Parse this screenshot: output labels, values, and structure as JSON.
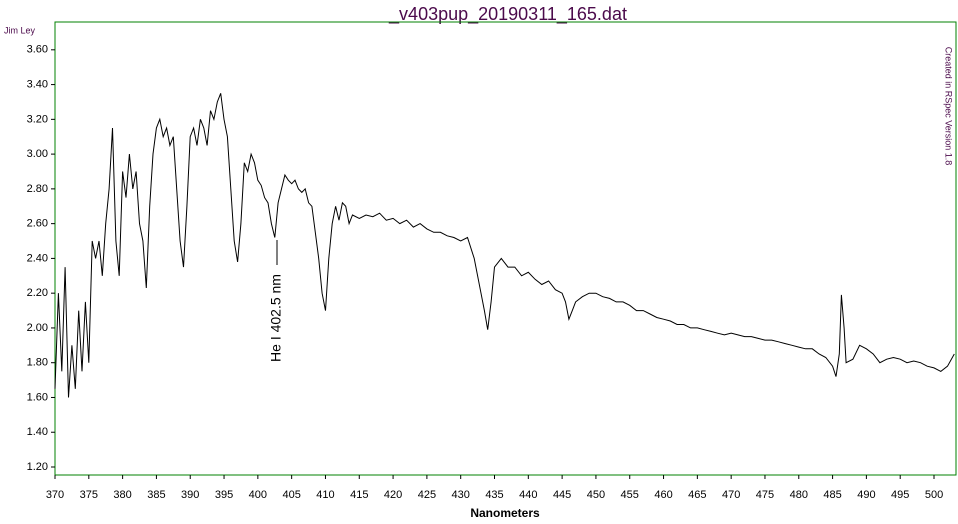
{
  "chart_data": {
    "type": "line",
    "title": "_v403pup_20190311_165.dat",
    "author": "Jim Ley",
    "credit": "Created in RSpec Version 1.8",
    "x_label": "Nanometers",
    "annotation": "He I 402.5 nm",
    "frame_color": "#008000",
    "title_color": "#4b0a4b",
    "xlim": [
      370,
      503.4
    ],
    "ylim": [
      1.154,
      3.76
    ],
    "xticks": [
      370,
      375,
      380,
      385,
      390,
      395,
      400,
      405,
      410,
      415,
      420,
      425,
      430,
      435,
      440,
      445,
      450,
      455,
      460,
      465,
      470,
      475,
      480,
      485,
      490,
      495,
      500
    ],
    "yticks": [
      {
        "value": 1.2,
        "label": "1.20"
      },
      {
        "value": 1.4,
        "label": "1.40"
      },
      {
        "value": 1.6,
        "label": "1.60"
      },
      {
        "value": 1.8,
        "label": "1.80"
      },
      {
        "value": 2.0,
        "label": "2.00"
      },
      {
        "value": 2.2,
        "label": "2.20"
      },
      {
        "value": 2.4,
        "label": "2.40"
      },
      {
        "value": 2.6,
        "label": "2.60"
      },
      {
        "value": 2.8,
        "label": "2.80"
      },
      {
        "value": 3.0,
        "label": "3.00"
      },
      {
        "value": 3.2,
        "label": "3.20"
      },
      {
        "value": 3.4,
        "label": "3.40"
      },
      {
        "value": 3.6,
        "label": "3.60"
      }
    ],
    "series": [
      {
        "color": "#000000",
        "x": [
          370,
          370.5,
          371,
          371.5,
          372,
          372.5,
          373,
          373.5,
          374,
          374.5,
          375,
          375.5,
          376,
          376.5,
          377,
          377.5,
          378,
          378.5,
          379,
          379.5,
          380,
          380.5,
          381,
          381.5,
          382,
          382.5,
          383,
          383.5,
          384,
          384.5,
          385,
          385.5,
          386,
          386.5,
          387,
          387.5,
          388,
          388.5,
          389,
          389.5,
          390,
          390.5,
          391,
          391.5,
          392,
          392.5,
          393,
          393.5,
          394,
          394.5,
          395,
          395.5,
          396,
          396.5,
          397,
          397.5,
          398,
          398.5,
          399,
          399.5,
          400,
          400.5,
          401,
          401.5,
          402,
          402.5,
          403,
          403.5,
          404,
          404.5,
          405,
          405.5,
          406,
          406.5,
          407,
          407.5,
          408,
          408.5,
          409,
          409.5,
          410,
          410.5,
          411,
          411.5,
          412,
          412.5,
          413,
          413.5,
          414,
          415,
          416,
          417,
          418,
          419,
          420,
          421,
          422,
          423,
          424,
          425,
          426,
          427,
          428,
          429,
          430,
          431,
          432,
          433,
          433.5,
          434,
          434.5,
          435,
          436,
          437,
          438,
          439,
          440,
          441,
          442,
          443,
          444,
          445,
          445.5,
          446,
          446.5,
          447,
          448,
          449,
          450,
          451,
          452,
          453,
          454,
          455,
          456,
          457,
          458,
          459,
          460,
          461,
          462,
          463,
          464,
          465,
          466,
          467,
          468,
          469,
          470,
          471,
          472,
          473,
          474,
          475,
          476,
          477,
          478,
          479,
          480,
          481,
          482,
          483,
          484,
          485,
          485.5,
          486,
          486.3,
          486.7,
          487,
          488,
          489,
          490,
          491,
          492,
          493,
          494,
          495,
          496,
          497,
          498,
          499,
          500,
          501,
          502,
          503
        ],
        "values": [
          1.65,
          2.2,
          1.75,
          2.35,
          1.6,
          1.9,
          1.65,
          2.1,
          1.75,
          2.15,
          1.8,
          2.5,
          2.4,
          2.5,
          2.3,
          2.6,
          2.8,
          3.15,
          2.5,
          2.3,
          2.9,
          2.75,
          3.0,
          2.8,
          2.9,
          2.6,
          2.5,
          2.23,
          2.7,
          3.0,
          3.15,
          3.2,
          3.1,
          3.15,
          3.05,
          3.1,
          2.8,
          2.5,
          2.35,
          2.7,
          3.1,
          3.15,
          3.05,
          3.2,
          3.15,
          3.05,
          3.25,
          3.2,
          3.3,
          3.35,
          3.2,
          3.1,
          2.8,
          2.5,
          2.38,
          2.6,
          2.95,
          2.9,
          3.0,
          2.95,
          2.85,
          2.82,
          2.75,
          2.72,
          2.6,
          2.52,
          2.72,
          2.8,
          2.88,
          2.85,
          2.83,
          2.85,
          2.8,
          2.78,
          2.8,
          2.72,
          2.7,
          2.55,
          2.4,
          2.2,
          2.1,
          2.4,
          2.6,
          2.7,
          2.62,
          2.72,
          2.7,
          2.6,
          2.65,
          2.63,
          2.65,
          2.64,
          2.66,
          2.62,
          2.63,
          2.6,
          2.62,
          2.58,
          2.6,
          2.57,
          2.55,
          2.55,
          2.53,
          2.52,
          2.5,
          2.52,
          2.4,
          2.2,
          2.1,
          1.99,
          2.15,
          2.35,
          2.4,
          2.35,
          2.35,
          2.3,
          2.32,
          2.28,
          2.25,
          2.27,
          2.22,
          2.2,
          2.15,
          2.05,
          2.1,
          2.15,
          2.18,
          2.2,
          2.2,
          2.18,
          2.17,
          2.15,
          2.15,
          2.13,
          2.1,
          2.1,
          2.08,
          2.06,
          2.05,
          2.04,
          2.02,
          2.02,
          2.0,
          2.0,
          1.99,
          1.98,
          1.97,
          1.96,
          1.97,
          1.96,
          1.95,
          1.95,
          1.94,
          1.93,
          1.93,
          1.92,
          1.91,
          1.9,
          1.89,
          1.88,
          1.88,
          1.85,
          1.83,
          1.78,
          1.72,
          1.85,
          2.19,
          2.0,
          1.8,
          1.82,
          1.9,
          1.88,
          1.85,
          1.8,
          1.82,
          1.83,
          1.82,
          1.8,
          1.81,
          1.8,
          1.78,
          1.77,
          1.75,
          1.78,
          1.85
        ]
      }
    ]
  }
}
